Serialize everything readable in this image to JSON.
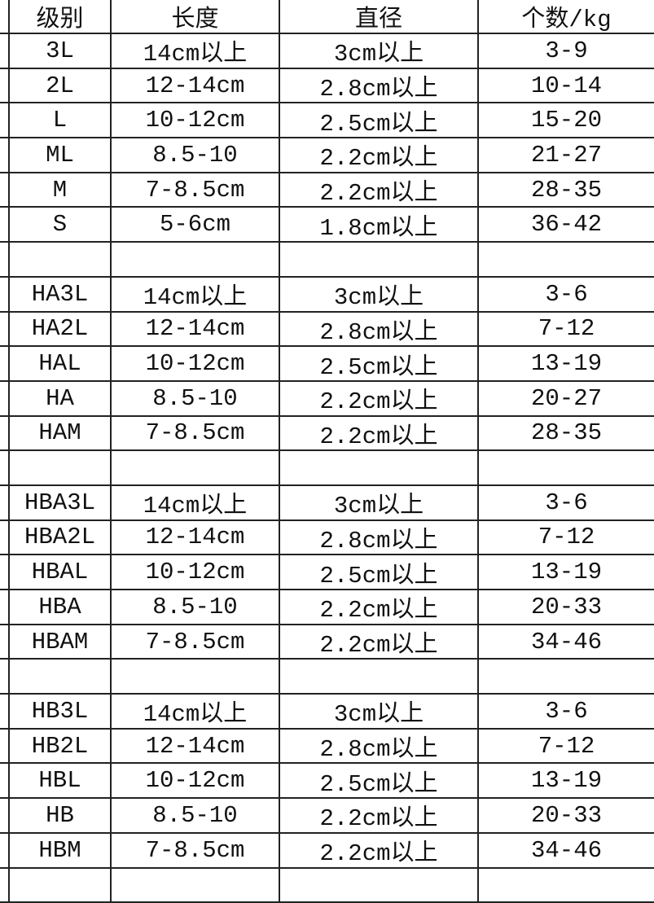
{
  "table": {
    "headers": [
      "级别",
      "长度",
      "直径",
      "个数/kg"
    ],
    "rows": [
      [
        "3L",
        "14cm以上",
        "3cm以上",
        "3-9"
      ],
      [
        "2L",
        "12-14cm",
        "2.8cm以上",
        "10-14"
      ],
      [
        "L",
        "10-12cm",
        "2.5cm以上",
        "15-20"
      ],
      [
        "ML",
        "8.5-10",
        "2.2cm以上",
        "21-27"
      ],
      [
        "M",
        "7-8.5cm",
        "2.2cm以上",
        "28-35"
      ],
      [
        "S",
        "5-6cm",
        "1.8cm以上",
        "36-42"
      ],
      [
        "",
        "",
        "",
        ""
      ],
      [
        "HA3L",
        "14cm以上",
        "3cm以上",
        "3-6"
      ],
      [
        "HA2L",
        "12-14cm",
        "2.8cm以上",
        "7-12"
      ],
      [
        "HAL",
        "10-12cm",
        "2.5cm以上",
        "13-19"
      ],
      [
        "HA",
        "8.5-10",
        "2.2cm以上",
        "20-27"
      ],
      [
        "HAM",
        "7-8.5cm",
        "2.2cm以上",
        "28-35"
      ],
      [
        "",
        "",
        "",
        ""
      ],
      [
        "HBA3L",
        "14cm以上",
        "3cm以上",
        "3-6"
      ],
      [
        "HBA2L",
        "12-14cm",
        "2.8cm以上",
        "7-12"
      ],
      [
        "HBAL",
        "10-12cm",
        "2.5cm以上",
        "13-19"
      ],
      [
        "HBA",
        "8.5-10",
        "2.2cm以上",
        "20-33"
      ],
      [
        "HBAM",
        "7-8.5cm",
        "2.2cm以上",
        "34-46"
      ],
      [
        "",
        "",
        "",
        ""
      ],
      [
        "HB3L",
        "14cm以上",
        "3cm以上",
        "3-6"
      ],
      [
        "HB2L",
        "12-14cm",
        "2.8cm以上",
        "7-12"
      ],
      [
        "HBL",
        "10-12cm",
        "2.5cm以上",
        "13-19"
      ],
      [
        "HB",
        "8.5-10",
        "2.2cm以上",
        "20-33"
      ],
      [
        "HBM",
        "7-8.5cm",
        "2.2cm以上",
        "34-46"
      ],
      [
        "",
        "",
        "",
        ""
      ]
    ]
  }
}
